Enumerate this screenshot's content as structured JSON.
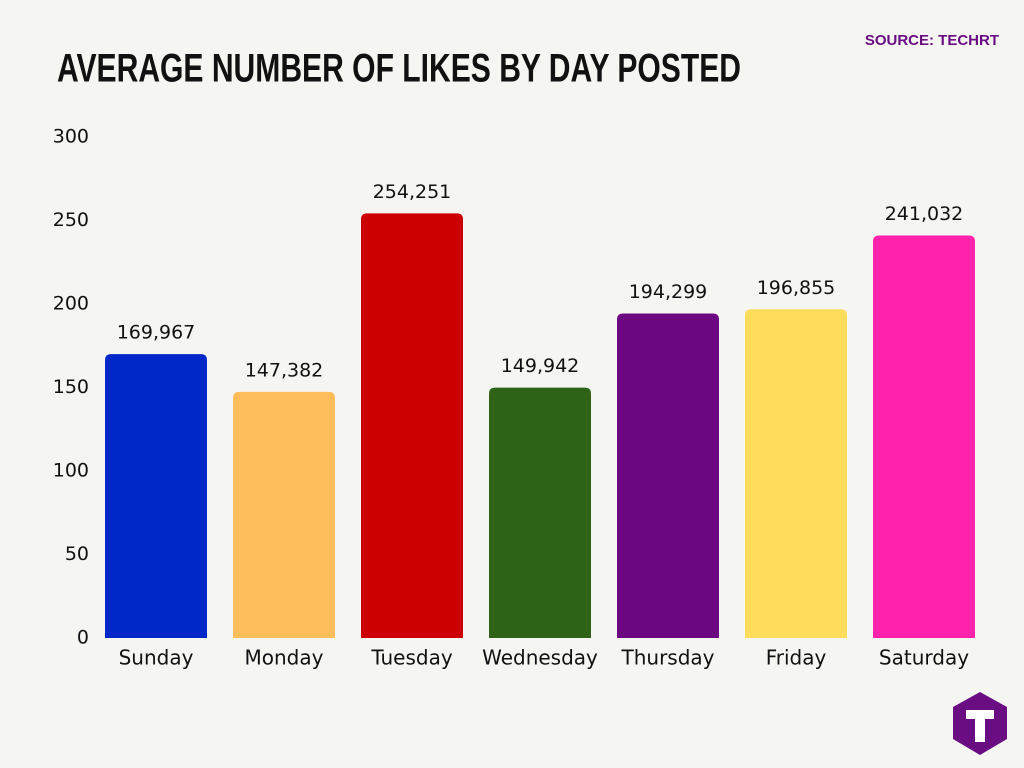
{
  "chart_data": {
    "type": "bar",
    "title": "AVERAGE NUMBER OF LIKES BY DAY POSTED",
    "source": "SOURCE: TECHRT",
    "categories": [
      "Sunday",
      "Monday",
      "Tuesday",
      "Wednesday",
      "Thursday",
      "Friday",
      "Saturday"
    ],
    "values": [
      169.967,
      147.382,
      254.251,
      149.942,
      194.299,
      196.855,
      241.032
    ],
    "value_labels": [
      "169,967",
      "147,382",
      "254,251",
      "149,942",
      "194,299",
      "196,855",
      "241,032"
    ],
    "colors": [
      "#0028c8",
      "#ffbe5c",
      "#cc0000",
      "#2f6418",
      "#6b0780",
      "#ffdd5c",
      "#ff22aa"
    ],
    "ylim": [
      0,
      300
    ],
    "yticks": [
      0,
      50,
      100,
      150,
      200,
      250,
      300
    ],
    "grid": false
  }
}
